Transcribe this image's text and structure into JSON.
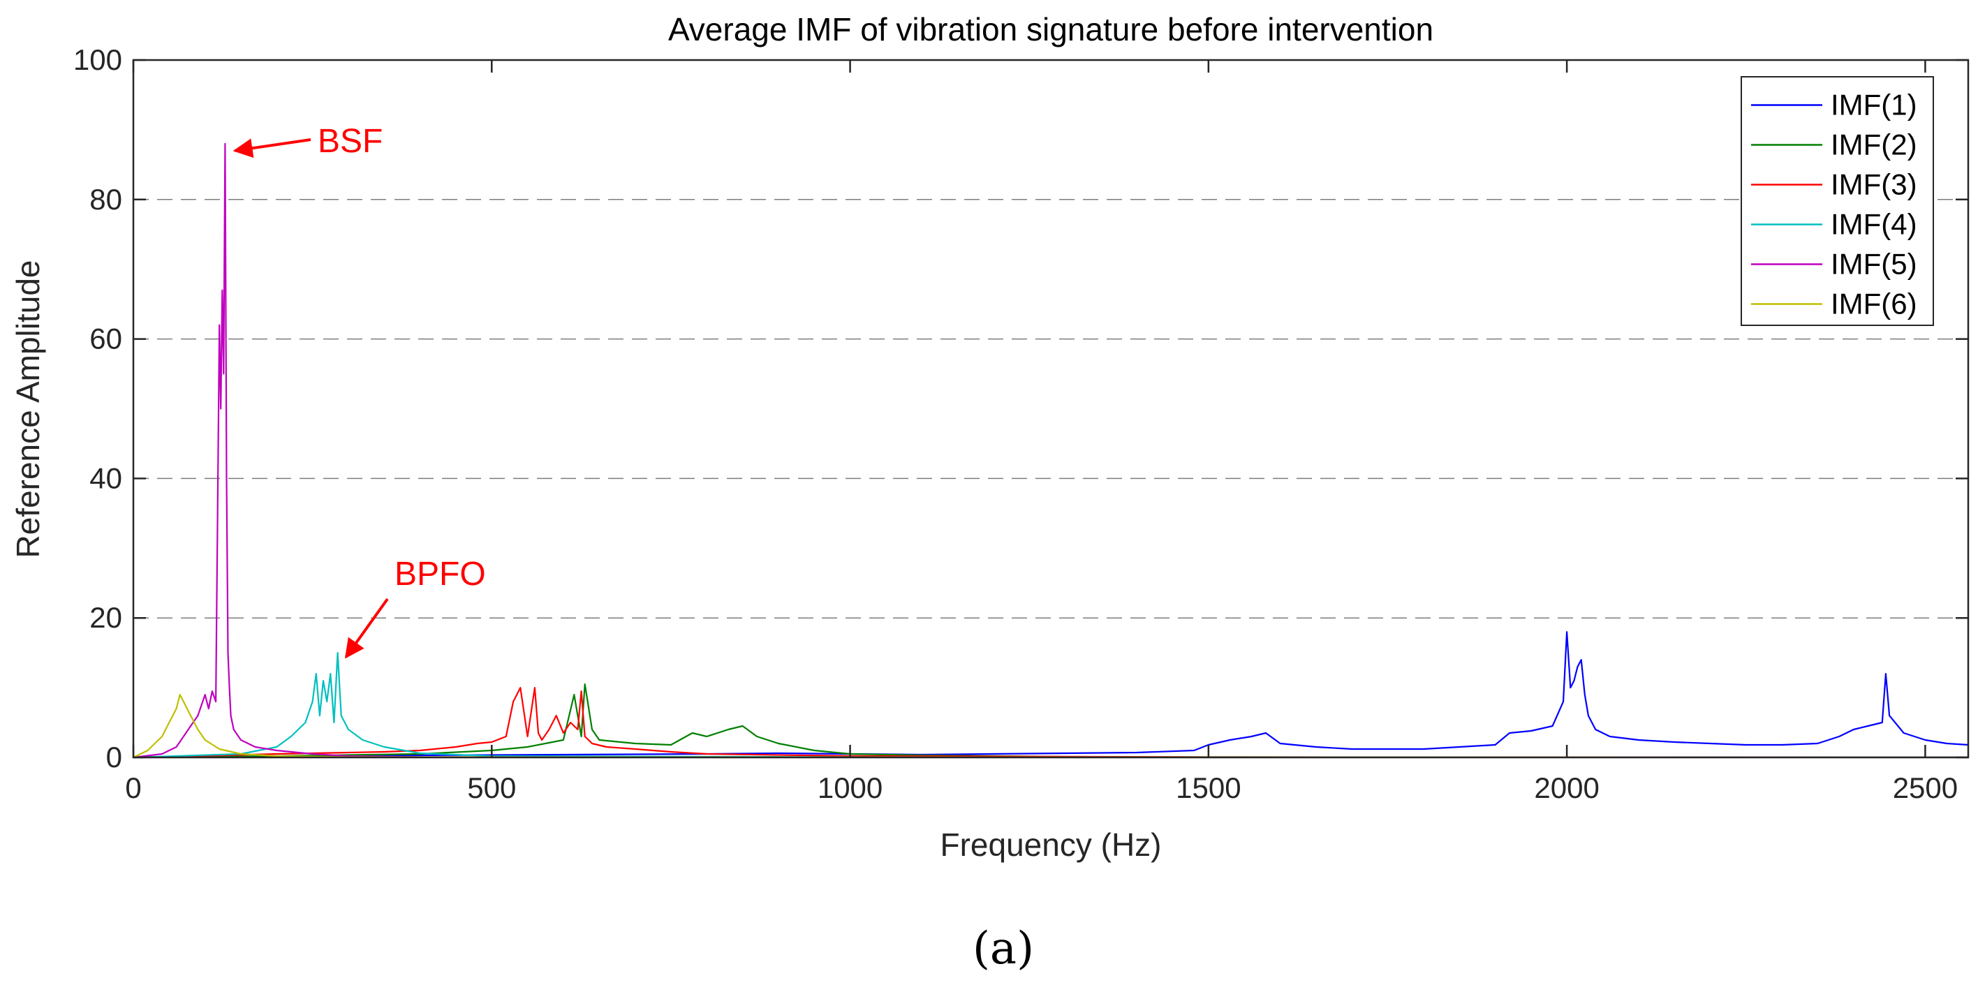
{
  "chart_data": {
    "type": "line",
    "title": "Average IMF of vibration signature before intervention",
    "xlabel": "Frequency (Hz)",
    "ylabel": "Reference Amplitude",
    "xlim": [
      0,
      2560
    ],
    "ylim": [
      0,
      100
    ],
    "xticks": [
      0,
      500,
      1000,
      1500,
      2000,
      2500
    ],
    "yticks": [
      0,
      20,
      40,
      60,
      80,
      100
    ],
    "grid": "horizontal dashed",
    "legend_position": "top-right",
    "panel_label": "(a)",
    "series": [
      {
        "name": "IMF(1)",
        "color": "#0000ff",
        "x": [
          0,
          400,
          800,
          900,
          1000,
          1100,
          1200,
          1300,
          1400,
          1480,
          1500,
          1530,
          1560,
          1580,
          1600,
          1650,
          1700,
          1800,
          1900,
          1920,
          1950,
          1980,
          1995,
          2000,
          2005,
          2010,
          2015,
          2020,
          2025,
          2030,
          2040,
          2060,
          2100,
          2150,
          2200,
          2250,
          2300,
          2350,
          2380,
          2400,
          2420,
          2440,
          2445,
          2450,
          2470,
          2500,
          2530,
          2560
        ],
        "values": [
          0,
          0.3,
          0.5,
          0.6,
          0.5,
          0.4,
          0.5,
          0.6,
          0.7,
          1.0,
          1.8,
          2.5,
          3.0,
          3.5,
          2.0,
          1.5,
          1.2,
          1.2,
          1.8,
          3.5,
          3.8,
          4.5,
          8,
          18,
          10,
          11,
          13,
          14,
          9,
          6,
          4,
          3,
          2.5,
          2.2,
          2.0,
          1.8,
          1.8,
          2.0,
          3.0,
          4.0,
          4.5,
          5,
          12,
          6,
          3.5,
          2.5,
          2.0,
          1.8
        ]
      },
      {
        "name": "IMF(2)",
        "color": "#008000",
        "x": [
          0,
          200,
          400,
          500,
          550,
          600,
          615,
          625,
          630,
          640,
          650,
          700,
          750,
          780,
          800,
          830,
          850,
          870,
          900,
          950,
          1000,
          1100,
          1200,
          1300,
          1500,
          2000,
          2560
        ],
        "values": [
          0,
          0.2,
          0.5,
          1.0,
          1.5,
          2.5,
          9,
          3.0,
          10.5,
          4.0,
          2.5,
          2.0,
          1.8,
          3.5,
          3.0,
          4.0,
          4.5,
          3.0,
          2.0,
          1.0,
          0.5,
          0.3,
          0.2,
          0.1,
          0.05,
          0.02,
          0
        ]
      },
      {
        "name": "IMF(3)",
        "color": "#ff0000",
        "x": [
          0,
          200,
          300,
          350,
          400,
          450,
          480,
          500,
          520,
          530,
          540,
          550,
          560,
          565,
          570,
          580,
          590,
          600,
          610,
          620,
          625,
          630,
          640,
          660,
          700,
          750,
          800,
          1000,
          1500,
          2560
        ],
        "values": [
          0,
          0.5,
          0.7,
          0.8,
          1.0,
          1.5,
          2.0,
          2.2,
          3.0,
          8,
          10,
          3.0,
          10,
          3.5,
          2.5,
          4.0,
          6,
          3.5,
          5,
          4.0,
          9.5,
          3.0,
          2.0,
          1.5,
          1.2,
          0.8,
          0.5,
          0.2,
          0.05,
          0
        ]
      },
      {
        "name": "IMF(4)",
        "color": "#00bfbf",
        "x": [
          0,
          150,
          200,
          220,
          240,
          250,
          255,
          260,
          265,
          270,
          275,
          280,
          285,
          290,
          300,
          320,
          350,
          400,
          500,
          1000,
          2560
        ],
        "values": [
          0,
          0.5,
          1.5,
          3.0,
          5,
          8,
          12,
          6,
          11,
          8,
          12,
          5,
          15,
          6,
          4.0,
          2.5,
          1.5,
          0.6,
          0.2,
          0.05,
          0
        ]
      },
      {
        "name": "IMF(5)",
        "color": "#bf00bf",
        "x": [
          0,
          40,
          60,
          80,
          90,
          100,
          105,
          110,
          115,
          120,
          122,
          124,
          126,
          128,
          130,
          132,
          134,
          136,
          140,
          150,
          170,
          200,
          250,
          300,
          400,
          2560
        ],
        "values": [
          0,
          0.5,
          1.5,
          4.5,
          6,
          9,
          7,
          9.5,
          8,
          62,
          50,
          67,
          55,
          88,
          40,
          15,
          10,
          6,
          4.0,
          2.5,
          1.5,
          1.0,
          0.5,
          0.2,
          0.05,
          0
        ]
      },
      {
        "name": "IMF(6)",
        "color": "#bfbf00",
        "x": [
          0,
          20,
          40,
          50,
          60,
          65,
          70,
          75,
          80,
          90,
          100,
          120,
          150,
          200,
          300,
          2560
        ],
        "values": [
          0,
          1.0,
          3.0,
          5,
          7,
          9,
          8,
          7,
          6,
          4.0,
          2.5,
          1.2,
          0.5,
          0.2,
          0.05,
          0
        ]
      }
    ],
    "annotations": [
      {
        "text": "BSF",
        "color": "#ff0000",
        "target_x": 130,
        "target_y": 87
      },
      {
        "text": "BPFO",
        "color": "#ff0000",
        "target_x": 285,
        "target_y": 16
      }
    ]
  }
}
